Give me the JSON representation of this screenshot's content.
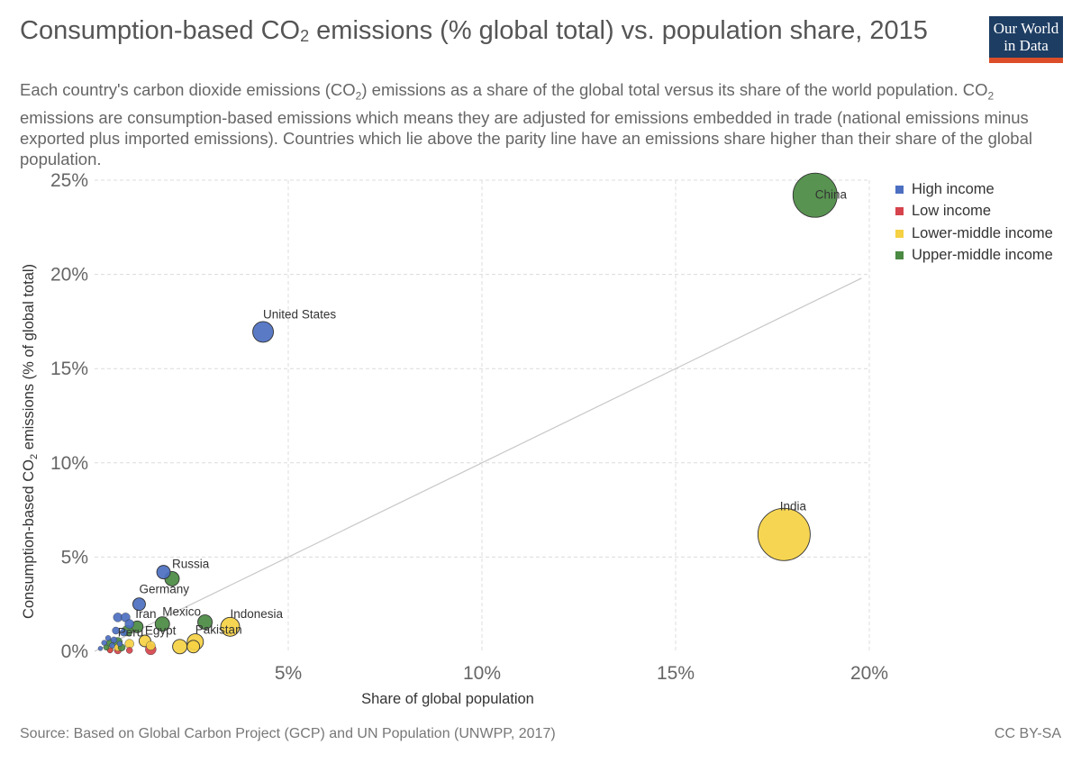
{
  "header": {
    "title_main": "Consumption-based CO",
    "title_sub": "2",
    "title_rest": " emissions (% global total) vs. population share, 2015",
    "subtitle_a": "Each country's carbon dioxide emissions (CO",
    "subtitle_b": "2",
    "subtitle_c": ") emissions as a share of the global total versus its share of the world population. CO",
    "subtitle_d": "2",
    "subtitle_e": " emissions are consumption-based emissions which means they are adjusted for emissions embedded in trade (national emissions minus exported plus imported emissions). Countries which lie above the parity line have an emissions share higher than their share of the global population."
  },
  "logo": {
    "line1": "Our World",
    "line2": "in Data"
  },
  "footer": {
    "source": "Source: Based on Global Carbon Project (GCP) and UN Population (UNWPP, 2017)",
    "license": "CC BY-SA"
  },
  "colors": {
    "High income": "#4c6fc1",
    "Low income": "#d6434c",
    "Lower-middle income": "#f5d143",
    "Upper-middle income": "#4a8a42"
  },
  "chart_data": {
    "type": "scatter",
    "xlabel": "Share of global population",
    "ylabel_a": "Consumption-based CO",
    "ylabel_b": "2",
    "ylabel_c": " emissions (% of global total)",
    "xlim": [
      0,
      20
    ],
    "ylim": [
      0,
      25
    ],
    "x_ticks": [
      5,
      10,
      15,
      20
    ],
    "x_tick_labels": [
      "5%",
      "10%",
      "15%",
      "20%"
    ],
    "y_ticks": [
      0,
      5,
      10,
      15,
      20,
      25
    ],
    "y_tick_labels": [
      "0%",
      "5%",
      "10%",
      "15%",
      "20%",
      "25%"
    ],
    "grid": true,
    "legend_position": "right",
    "parity_line": [
      [
        0,
        0
      ],
      [
        19.8,
        19.8
      ]
    ],
    "series": [
      {
        "name": "High income",
        "points": [
          {
            "x": 4.35,
            "y": 16.95,
            "label": "United States",
            "size": 11.5
          },
          {
            "x": 1.78,
            "y": 4.2,
            "size": 7.5
          },
          {
            "x": 1.15,
            "y": 2.5,
            "label": "Germany",
            "size": 7
          },
          {
            "x": 0.6,
            "y": 1.8,
            "size": 5
          },
          {
            "x": 0.8,
            "y": 1.8,
            "size": 5
          },
          {
            "x": 0.9,
            "y": 1.45,
            "size": 5
          },
          {
            "x": 0.55,
            "y": 1.1,
            "size": 4
          },
          {
            "x": 0.75,
            "y": 1.0,
            "size": 4
          },
          {
            "x": 0.5,
            "y": 0.6,
            "size": 3.5
          },
          {
            "x": 0.35,
            "y": 0.7,
            "size": 3
          },
          {
            "x": 0.25,
            "y": 0.45,
            "size": 3
          },
          {
            "x": 0.15,
            "y": 0.15,
            "size": 2.5
          },
          {
            "x": 0.45,
            "y": 0.3,
            "size": 3
          },
          {
            "x": 0.65,
            "y": 0.4,
            "size": 3
          }
        ]
      },
      {
        "name": "Low income",
        "points": [
          {
            "x": 1.45,
            "y": 0.1,
            "size": 6
          },
          {
            "x": 0.6,
            "y": 0.05,
            "size": 4
          },
          {
            "x": 0.9,
            "y": 0.05,
            "size": 3.5
          },
          {
            "x": 0.4,
            "y": 0.05,
            "size": 3
          }
        ]
      },
      {
        "name": "Lower-middle income",
        "points": [
          {
            "x": 17.8,
            "y": 6.2,
            "label": "India",
            "size": 29
          },
          {
            "x": 3.5,
            "y": 1.3,
            "label": "Indonesia",
            "size": 10.5
          },
          {
            "x": 2.6,
            "y": 0.5,
            "label": "Pakistan",
            "size": 9
          },
          {
            "x": 2.2,
            "y": 0.25,
            "size": 8
          },
          {
            "x": 2.55,
            "y": 0.25,
            "size": 7
          },
          {
            "x": 1.3,
            "y": 0.55,
            "label": "Egypt",
            "size": 6.5
          },
          {
            "x": 1.45,
            "y": 0.3,
            "size": 5
          },
          {
            "x": 0.9,
            "y": 0.4,
            "size": 5
          },
          {
            "x": 0.6,
            "y": 0.2,
            "size": 4
          },
          {
            "x": 0.4,
            "y": 0.1,
            "size": 3.5
          }
        ]
      },
      {
        "name": "Upper-middle income",
        "points": [
          {
            "x": 18.6,
            "y": 24.2,
            "label": "China",
            "size": 24.5
          },
          {
            "x": 2.0,
            "y": 3.85,
            "label": "Russia",
            "size": 8
          },
          {
            "x": 2.85,
            "y": 1.55,
            "size": 8
          },
          {
            "x": 1.75,
            "y": 1.45,
            "label": "Mexico",
            "size": 8
          },
          {
            "x": 1.1,
            "y": 1.3,
            "label": "Iran",
            "size": 6.5
          },
          {
            "x": 0.85,
            "y": 1.1,
            "size": 6
          },
          {
            "x": 0.6,
            "y": 0.5,
            "label": "Peru",
            "size": 5
          },
          {
            "x": 0.4,
            "y": 0.45,
            "size": 4
          },
          {
            "x": 0.7,
            "y": 0.2,
            "size": 4
          },
          {
            "x": 0.3,
            "y": 0.2,
            "size": 3
          }
        ]
      }
    ]
  }
}
